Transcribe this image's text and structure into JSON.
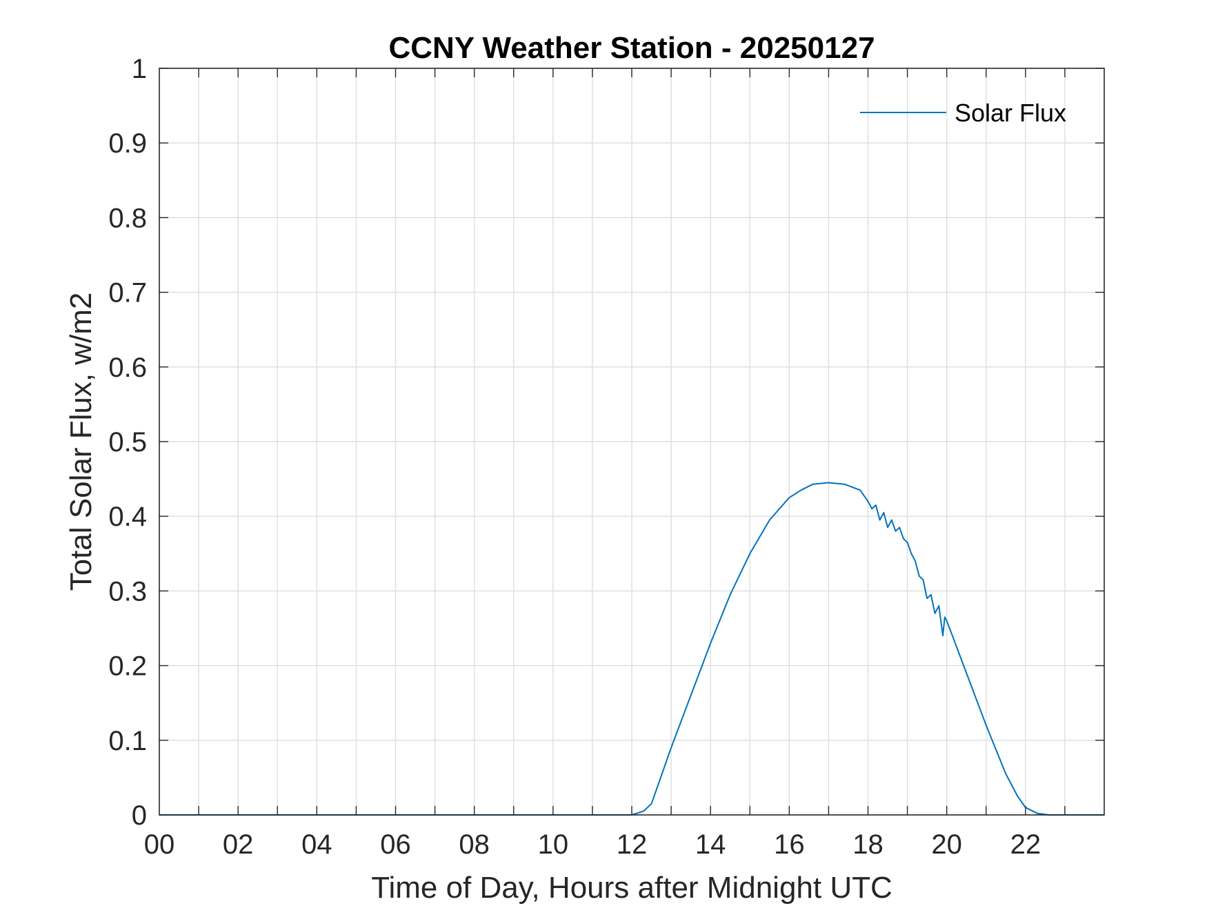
{
  "chart_data": {
    "type": "line",
    "title": "CCNY Weather Station - 20250127",
    "xlabel": "Time of Day, Hours after Midnight UTC",
    "ylabel": "Total Solar Flux, w/m2",
    "xlim": [
      0,
      24
    ],
    "ylim": [
      0,
      1
    ],
    "grid": true,
    "legend_position": "top-right",
    "x_ticks": [
      0,
      2,
      4,
      6,
      8,
      10,
      12,
      14,
      16,
      18,
      20,
      22
    ],
    "x_tick_labels": [
      "00",
      "02",
      "04",
      "06",
      "08",
      "10",
      "12",
      "14",
      "16",
      "18",
      "20",
      "22"
    ],
    "y_ticks": [
      0,
      0.1,
      0.2,
      0.3,
      0.4,
      0.5,
      0.6,
      0.7,
      0.8,
      0.9,
      1
    ],
    "y_tick_labels": [
      "0",
      "0.1",
      "0.2",
      "0.3",
      "0.4",
      "0.5",
      "0.6",
      "0.7",
      "0.8",
      "0.9",
      "1"
    ],
    "series": [
      {
        "name": "Solar Flux",
        "color": "#0072BD",
        "x": [
          0,
          12.0,
          12.3,
          12.5,
          12.6,
          12.8,
          13.0,
          13.5,
          14.0,
          14.5,
          15.0,
          15.5,
          16.0,
          16.3,
          16.6,
          17.0,
          17.4,
          17.8,
          18.0,
          18.1,
          18.2,
          18.3,
          18.4,
          18.5,
          18.6,
          18.7,
          18.8,
          18.9,
          19.0,
          19.1,
          19.2,
          19.3,
          19.4,
          19.5,
          19.6,
          19.7,
          19.8,
          19.9,
          19.95,
          20.0,
          20.5,
          21.0,
          21.5,
          21.8,
          22.0,
          22.3,
          22.6,
          24.0
        ],
        "y": [
          0,
          0,
          0.005,
          0.015,
          0.03,
          0.06,
          0.09,
          0.16,
          0.23,
          0.295,
          0.35,
          0.395,
          0.425,
          0.435,
          0.443,
          0.445,
          0.443,
          0.435,
          0.42,
          0.41,
          0.415,
          0.395,
          0.405,
          0.385,
          0.395,
          0.38,
          0.385,
          0.37,
          0.365,
          0.35,
          0.34,
          0.32,
          0.315,
          0.29,
          0.295,
          0.27,
          0.28,
          0.24,
          0.265,
          0.26,
          0.19,
          0.12,
          0.055,
          0.025,
          0.01,
          0.002,
          0,
          0
        ]
      }
    ]
  }
}
